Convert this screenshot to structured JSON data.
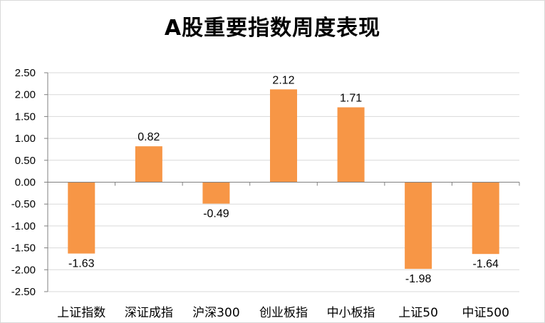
{
  "chart_data": {
    "type": "bar",
    "title": "A股重要指数周度表现",
    "categories": [
      "上证指数",
      "深证成指",
      "沪深300",
      "创业板指",
      "中小板指",
      "上证50",
      "中证500"
    ],
    "values": [
      -1.63,
      0.82,
      -0.49,
      2.12,
      1.71,
      -1.98,
      -1.64
    ],
    "data_labels": [
      "-1.63",
      "0.82",
      "-0.49",
      "2.12",
      "1.71",
      "-1.98",
      "-1.64"
    ],
    "y_ticks": [
      "2.50",
      "2.00",
      "1.50",
      "1.00",
      "0.50",
      "0.00",
      "-0.50",
      "-1.00",
      "-1.50",
      "-2.00",
      "-2.50"
    ],
    "ylim": [
      -2.5,
      2.5
    ],
    "grid": true,
    "legend": "none",
    "bar_color": "#F79646",
    "xlabel": "",
    "ylabel": ""
  }
}
